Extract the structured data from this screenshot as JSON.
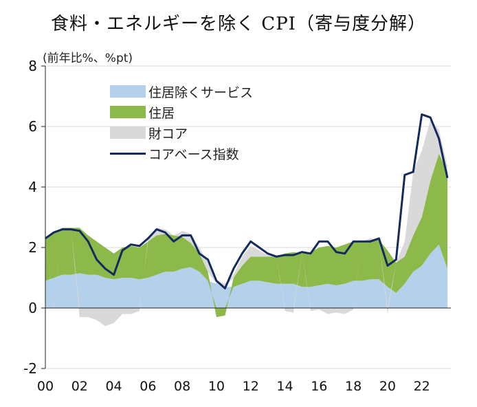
{
  "title": "食料・エネルギーを除く CPI（寄与度分解）",
  "unit_label": "(前年比%、%pt)",
  "colors": {
    "services_ex_shelter": "#b4d0ea",
    "shelter": "#8db84a",
    "core_goods": "#d9d9d9",
    "core_index": "#14295e",
    "axis": "#222222",
    "grid": "#d9d9d9"
  },
  "chart_data": {
    "type": "area",
    "stacked": true,
    "x_ticks": [
      "00",
      "02",
      "04",
      "06",
      "08",
      "10",
      "12",
      "14",
      "16",
      "18",
      "20",
      "22"
    ],
    "xlim": [
      2000,
      2023.7
    ],
    "ylim": [
      -2,
      8
    ],
    "y_ticks": [
      "-2",
      "0",
      "2",
      "4",
      "6",
      "8"
    ],
    "grid": true,
    "legend_position": "top-left",
    "x": [
      2000,
      2000.5,
      2001,
      2001.5,
      2002,
      2002.5,
      2003,
      2003.5,
      2004,
      2004.5,
      2005,
      2005.5,
      2006,
      2006.5,
      2007,
      2007.5,
      2008,
      2008.5,
      2009,
      2009.5,
      2010,
      2010.5,
      2011,
      2011.5,
      2012,
      2012.5,
      2013,
      2013.5,
      2014,
      2014.5,
      2015,
      2015.5,
      2016,
      2016.5,
      2017,
      2017.5,
      2018,
      2018.5,
      2019,
      2019.5,
      2020,
      2020.5,
      2021,
      2021.5,
      2022,
      2022.5,
      2023,
      2023.5
    ],
    "series": [
      {
        "name": "住居除くサービス",
        "kind": "area",
        "values": [
          0.9,
          1.0,
          1.1,
          1.1,
          1.15,
          1.1,
          1.1,
          1.0,
          0.95,
          1.0,
          1.0,
          0.95,
          1.0,
          1.1,
          1.2,
          1.2,
          1.3,
          1.35,
          1.2,
          0.9,
          0.8,
          0.7,
          0.7,
          0.8,
          0.9,
          0.9,
          0.85,
          0.8,
          0.8,
          0.8,
          0.7,
          0.7,
          0.75,
          0.8,
          0.75,
          0.8,
          0.9,
          0.9,
          0.95,
          0.95,
          0.7,
          0.5,
          0.8,
          1.2,
          1.4,
          1.8,
          2.1,
          1.3
        ]
      },
      {
        "name": "住居",
        "kind": "area",
        "values": [
          1.4,
          1.5,
          1.55,
          1.55,
          1.5,
          1.3,
          1.1,
          1.0,
          0.85,
          1.0,
          1.05,
          1.05,
          1.2,
          1.3,
          1.25,
          1.2,
          1.05,
          0.8,
          0.6,
          0.3,
          -0.3,
          -0.25,
          0.3,
          0.6,
          0.8,
          0.8,
          0.85,
          0.9,
          1.0,
          1.05,
          1.1,
          1.15,
          1.25,
          1.25,
          1.25,
          1.3,
          1.3,
          1.3,
          1.3,
          1.3,
          1.2,
          1.0,
          0.9,
          1.2,
          1.6,
          2.4,
          3.0,
          3.2
        ]
      },
      {
        "name": "財コア",
        "kind": "area",
        "values": [
          0.0,
          -0.05,
          0.0,
          0.0,
          -0.3,
          -0.3,
          -0.4,
          -0.6,
          -0.5,
          -0.2,
          -0.2,
          -0.1,
          0.1,
          0.25,
          0.15,
          0.0,
          0.2,
          0.3,
          0.2,
          0.3,
          0.1,
          0.1,
          0.1,
          0.3,
          0.35,
          0.2,
          0.05,
          0.0,
          -0.1,
          -0.15,
          0.0,
          -0.1,
          -0.05,
          -0.2,
          -0.15,
          -0.2,
          -0.05,
          0.0,
          0.05,
          0.0,
          -0.2,
          0.0,
          0.5,
          2.1,
          2.2,
          2.0,
          0.8,
          0.2
        ]
      },
      {
        "name": "コアベース指数",
        "kind": "line",
        "values": [
          2.3,
          2.5,
          2.6,
          2.6,
          2.55,
          2.2,
          1.6,
          1.3,
          1.1,
          1.9,
          2.1,
          2.05,
          2.3,
          2.6,
          2.5,
          2.2,
          2.4,
          2.4,
          1.8,
          1.6,
          0.9,
          0.65,
          1.3,
          1.8,
          2.2,
          2.0,
          1.8,
          1.7,
          1.75,
          1.75,
          1.85,
          1.8,
          2.2,
          2.2,
          1.85,
          1.8,
          2.2,
          2.2,
          2.2,
          2.3,
          1.4,
          1.6,
          4.4,
          4.5,
          6.4,
          6.3,
          5.6,
          4.3
        ]
      }
    ]
  }
}
